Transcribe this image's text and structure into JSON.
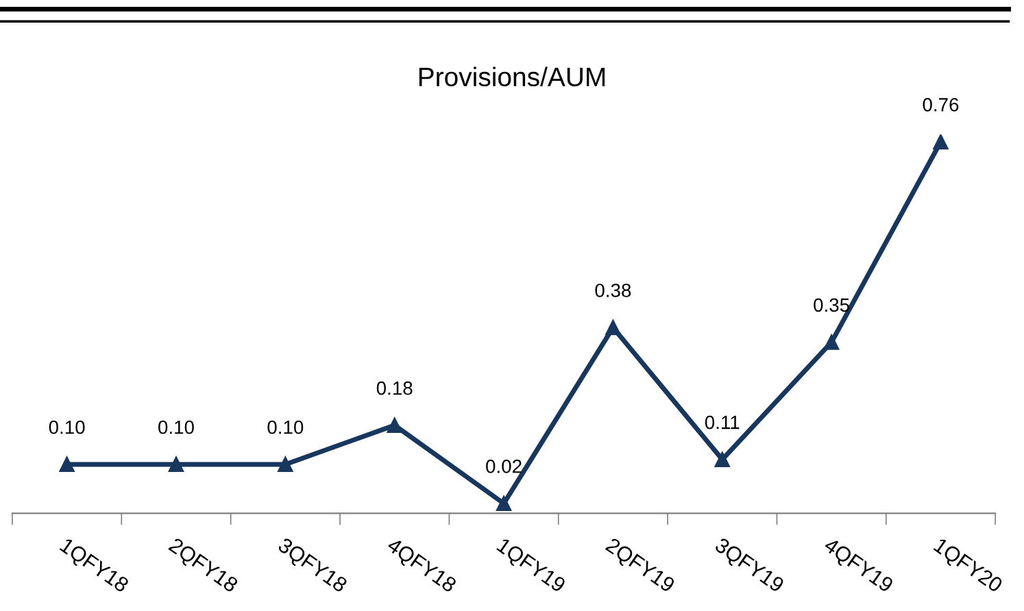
{
  "chart_data": {
    "type": "line",
    "title": "Provisions/AUM",
    "categories": [
      "1QFY18",
      "2QFY18",
      "3QFY18",
      "4QFY18",
      "1QFY19",
      "2QFY19",
      "3QFY19",
      "4QFY19",
      "1QFY20"
    ],
    "series": [
      {
        "color": "#17375e",
        "values": [
          0.1,
          0.1,
          0.1,
          0.18,
          0.02,
          0.38,
          0.11,
          0.35,
          0.76
        ],
        "value_labels": [
          "0.10",
          "0.10",
          "0.10",
          "0.18",
          "0.02",
          "0.38",
          "0.11",
          "0.35",
          "0.76"
        ]
      }
    ],
    "marker": "triangle",
    "line_style": "solid",
    "grid": false,
    "legend": false,
    "tick_labels": "x"
  }
}
